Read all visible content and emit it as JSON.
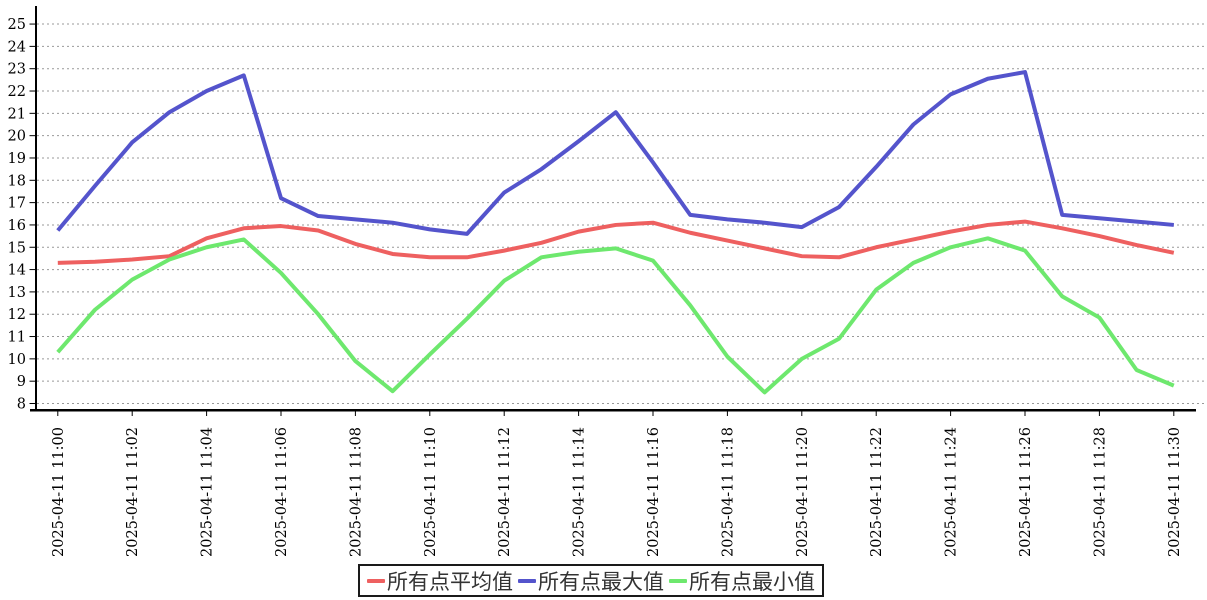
{
  "chart_data": {
    "type": "line",
    "title": "",
    "xlabel": "",
    "ylabel": "",
    "ylim": [
      8,
      25
    ],
    "y_ticks": [
      25,
      24,
      23,
      22,
      21,
      20,
      19,
      18,
      17,
      16,
      15,
      14,
      13,
      12,
      11,
      10,
      9,
      8
    ],
    "grid": "horizontal-dashed",
    "legend_position": "bottom-center",
    "x_labels": [
      "2025-04-11 11:00",
      "2025-04-11 11:02",
      "2025-04-11 11:04",
      "2025-04-11 11:06",
      "2025-04-11 11:08",
      "2025-04-11 11:10",
      "2025-04-11 11:12",
      "2025-04-11 11:14",
      "2025-04-11 11:16",
      "2025-04-11 11:18",
      "2025-04-11 11:20",
      "2025-04-11 11:22",
      "2025-04-11 11:24",
      "2025-04-11 11:26",
      "2025-04-11 11:28",
      "2025-04-11 11:30"
    ],
    "x_minutes_per_point": 1,
    "points_count": 31,
    "series": [
      {
        "name": "所有点平均值",
        "color": "#ee6060",
        "values": [
          14.3,
          14.35,
          14.45,
          14.6,
          15.4,
          15.85,
          15.95,
          15.75,
          15.15,
          14.7,
          14.55,
          14.55,
          14.85,
          15.2,
          15.7,
          16.0,
          16.1,
          15.65,
          15.3,
          14.95,
          14.6,
          14.55,
          15.0,
          15.35,
          15.7,
          16.0,
          16.15,
          15.85,
          15.5,
          15.1,
          14.75
        ]
      },
      {
        "name": "所有点最大值",
        "color": "#5454cc",
        "values": [
          15.75,
          17.75,
          19.7,
          21.05,
          22.0,
          22.7,
          17.2,
          16.4,
          16.25,
          16.1,
          15.8,
          15.6,
          17.45,
          18.5,
          19.75,
          21.05,
          18.8,
          16.45,
          16.25,
          16.1,
          15.9,
          16.8,
          18.6,
          20.5,
          21.85,
          22.55,
          22.85,
          16.45,
          16.3,
          16.15,
          16.0
        ]
      },
      {
        "name": "所有点最小值",
        "color": "#6ee86e",
        "values": [
          10.3,
          12.2,
          13.55,
          14.45,
          15.0,
          15.35,
          13.85,
          12.0,
          9.9,
          8.55,
          10.2,
          11.8,
          13.5,
          14.55,
          14.8,
          14.95,
          14.4,
          12.4,
          10.1,
          8.5,
          10.0,
          10.9,
          13.1,
          14.3,
          15.0,
          15.4,
          14.85,
          12.8,
          11.85,
          9.5,
          8.8
        ]
      }
    ],
    "axis_color": "#000000",
    "gridline_color": "#999999"
  }
}
